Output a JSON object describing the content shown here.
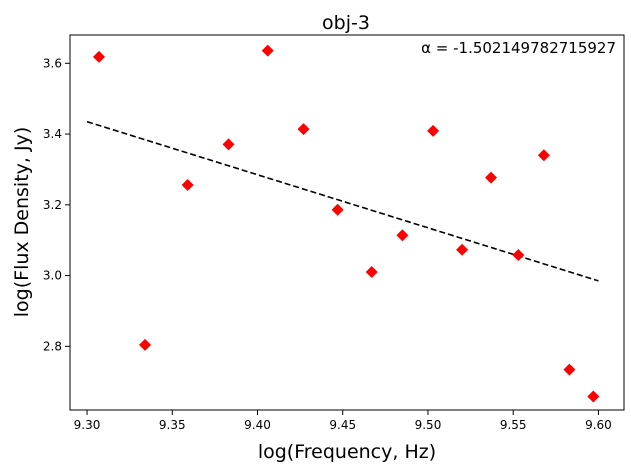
{
  "chart_data": {
    "type": "scatter",
    "title": "obj-3",
    "xlabel": "log(Frequency, Hz)",
    "ylabel": "log(Flux Density, Jy)",
    "xlim": [
      9.29,
      9.615
    ],
    "ylim": [
      2.62,
      3.68
    ],
    "xticks": [
      9.3,
      9.35,
      9.4,
      9.45,
      9.5,
      9.55,
      9.6
    ],
    "xtick_labels": [
      "9.30",
      "9.35",
      "9.40",
      "9.45",
      "9.50",
      "9.55",
      "9.60"
    ],
    "yticks": [
      2.8,
      3.0,
      3.2,
      3.4,
      3.6
    ],
    "ytick_labels": [
      "2.8",
      "3.0",
      "3.2",
      "3.4",
      "3.6"
    ],
    "grid": false,
    "annotation": "α = -1.502149782715927",
    "series": [
      {
        "marker": "diamond",
        "color": "#ff0000",
        "points": [
          [
            9.307,
            3.618
          ],
          [
            9.334,
            2.804
          ],
          [
            9.359,
            3.256
          ],
          [
            9.383,
            3.371
          ],
          [
            9.406,
            3.636
          ],
          [
            9.427,
            3.414
          ],
          [
            9.447,
            3.186
          ],
          [
            9.467,
            3.01
          ],
          [
            9.485,
            3.114
          ],
          [
            9.503,
            3.409
          ],
          [
            9.52,
            3.073
          ],
          [
            9.537,
            3.277
          ],
          [
            9.553,
            3.058
          ],
          [
            9.568,
            3.34
          ],
          [
            9.583,
            2.734
          ],
          [
            9.597,
            2.658
          ]
        ]
      },
      {
        "style": "dashed-line",
        "color": "#000000",
        "points": [
          [
            9.3,
            3.435
          ],
          [
            9.6,
            2.985
          ]
        ]
      }
    ]
  }
}
